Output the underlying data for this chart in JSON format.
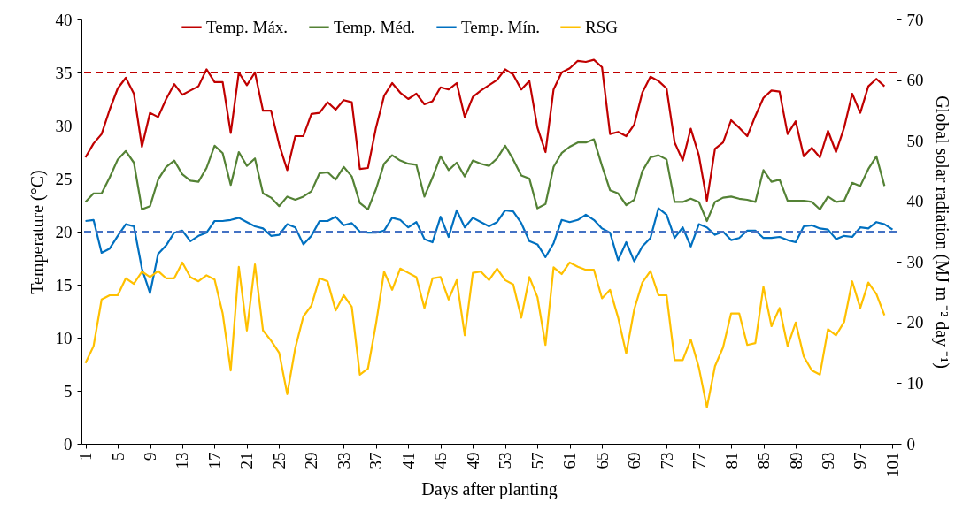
{
  "chart_data": {
    "type": "line",
    "xlabel": "Days after planting",
    "ylabel": "Temperature (°C)",
    "y2label": "Global solar radiation (MJ m ⁻² day ⁻¹)",
    "x": [
      1,
      2,
      3,
      4,
      5,
      6,
      7,
      8,
      9,
      10,
      11,
      12,
      13,
      14,
      15,
      16,
      17,
      18,
      19,
      20,
      21,
      22,
      23,
      24,
      25,
      26,
      27,
      28,
      29,
      30,
      31,
      32,
      33,
      34,
      35,
      36,
      37,
      38,
      39,
      40,
      41,
      42,
      43,
      44,
      45,
      46,
      47,
      48,
      49,
      50,
      51,
      52,
      53,
      54,
      55,
      56,
      57,
      58,
      59,
      60,
      61,
      62,
      63,
      64,
      65,
      66,
      67,
      68,
      69,
      70,
      71,
      72,
      73,
      74,
      75,
      76,
      77,
      78,
      79,
      80,
      81,
      82,
      83,
      84,
      85,
      86,
      87,
      88,
      89,
      90,
      91,
      92,
      93,
      94,
      95,
      96,
      97,
      98,
      99,
      100,
      101
    ],
    "xlim": [
      0.5,
      101.5
    ],
    "xticks": [
      1,
      5,
      9,
      13,
      17,
      21,
      25,
      29,
      33,
      37,
      41,
      45,
      49,
      53,
      57,
      61,
      65,
      69,
      73,
      77,
      81,
      85,
      89,
      93,
      97,
      101
    ],
    "ylim": [
      0,
      40
    ],
    "yticks": [
      0,
      5,
      10,
      15,
      20,
      25,
      30,
      35,
      40
    ],
    "y2lim": [
      0,
      70
    ],
    "y2ticks": [
      0,
      10,
      20,
      30,
      40,
      50,
      60,
      70
    ],
    "legend": "top",
    "grid": false,
    "line_style": "solid",
    "series": [
      {
        "name": "Temp. Máx.",
        "color": "#c00000",
        "values": [
          27,
          28.3,
          29.2,
          31.5,
          33.5,
          34.5,
          33,
          28,
          31.2,
          30.8,
          32.5,
          33.9,
          32.9,
          33.3,
          33.7,
          35.3,
          34.1,
          34.1,
          29.3,
          35,
          33.8,
          35,
          31.4,
          31.4,
          28.2,
          25.8,
          29,
          29,
          31.1,
          31.2,
          32.2,
          31.5,
          32.4,
          32.2,
          25.9,
          26,
          29.8,
          32.8,
          34,
          33.1,
          32.5,
          33,
          32,
          32.3,
          33.6,
          33.4,
          34,
          30.8,
          32.7,
          33.3,
          33.8,
          34.3,
          35.3,
          34.8,
          33.4,
          34.2,
          29.8,
          27.5,
          33.4,
          35,
          35.4,
          36.1,
          36,
          36.2,
          35.5,
          29.2,
          29.4,
          29,
          30.1,
          33.1,
          34.6,
          34.2,
          33.5,
          28.4,
          26.7,
          29.7,
          27.2,
          22.9,
          27.8,
          28.4,
          30.5,
          29.8,
          29,
          30.9,
          32.6,
          33.3,
          33.2,
          29.2,
          30.4,
          27.1,
          27.9,
          27,
          29.5,
          27.5,
          29.8,
          33,
          31.2,
          33.7,
          34.4,
          33.7,
          null
        ]
      },
      {
        "name": "Temp. Méd.",
        "color": "#548235",
        "values": [
          22.8,
          23.6,
          23.6,
          25.1,
          26.8,
          27.6,
          26.5,
          22.1,
          22.4,
          24.9,
          26.1,
          26.7,
          25.4,
          24.8,
          24.7,
          26,
          28.1,
          27.4,
          24.4,
          27.5,
          26.2,
          26.9,
          23.6,
          23.2,
          22.4,
          23.3,
          23,
          23.3,
          23.8,
          25.5,
          25.6,
          24.9,
          26.1,
          25.2,
          22.7,
          22.1,
          24,
          26.4,
          27.2,
          26.7,
          26.4,
          26.3,
          23.3,
          25.1,
          27.1,
          25.8,
          26.5,
          25.2,
          26.7,
          26.4,
          26.2,
          26.9,
          28.1,
          26.8,
          25.3,
          25,
          22.2,
          22.6,
          26.1,
          27.4,
          28,
          28.4,
          28.4,
          28.7,
          26.2,
          23.9,
          23.6,
          22.5,
          23,
          25.7,
          27,
          27.2,
          26.8,
          22.8,
          22.8,
          23.1,
          22.8,
          21,
          22.8,
          23.2,
          23.3,
          23.1,
          23,
          22.8,
          25.8,
          24.7,
          24.9,
          22.9,
          22.9,
          22.9,
          22.8,
          22.1,
          23.3,
          22.8,
          22.9,
          24.6,
          24.3,
          25.9,
          27.1,
          24.3,
          null
        ]
      },
      {
        "name": "Temp. Mín.",
        "color": "#0070c0",
        "values": [
          21,
          21.1,
          18,
          18.4,
          19.6,
          20.7,
          20.5,
          16.5,
          14.2,
          17.9,
          18.7,
          19.9,
          20.1,
          19.1,
          19.6,
          19.9,
          21,
          21,
          21.1,
          21.3,
          20.9,
          20.5,
          20.3,
          19.6,
          19.7,
          20.7,
          20.4,
          18.8,
          19.6,
          21,
          21,
          21.4,
          20.6,
          20.8,
          20,
          19.9,
          19.9,
          20.1,
          21.3,
          21.1,
          20.4,
          20.9,
          19.3,
          19,
          21.4,
          19.5,
          22,
          20.4,
          21.3,
          20.9,
          20.5,
          20.9,
          22,
          21.9,
          20.8,
          19.1,
          18.8,
          17.6,
          18.9,
          21.1,
          20.9,
          21.1,
          21.6,
          21.1,
          20.3,
          19.9,
          17.3,
          19,
          17.2,
          18.6,
          19.4,
          22.2,
          21.6,
          19.4,
          20.4,
          18.6,
          20.7,
          20.4,
          19.7,
          20,
          19.2,
          19.4,
          20.1,
          20.1,
          19.4,
          19.4,
          19.5,
          19.2,
          19,
          20.5,
          20.6,
          20.3,
          20.2,
          19.3,
          19.6,
          19.5,
          20.4,
          20.3,
          20.9,
          20.7,
          20.2
        ]
      },
      {
        "name": "RSG",
        "color": "#ffc000",
        "axis": "y2",
        "values": [
          13.3,
          16.1,
          23.8,
          24.5,
          24.5,
          27.3,
          26.4,
          28.4,
          27.5,
          28.5,
          27.3,
          27.3,
          29.9,
          27.5,
          26.8,
          27.8,
          27.1,
          21.5,
          12.1,
          29.2,
          18.7,
          29.6,
          18.7,
          17,
          15,
          8.2,
          15.8,
          21,
          22.8,
          27.3,
          26.8,
          22,
          24.5,
          22.6,
          11.4,
          12.4,
          19.8,
          28.4,
          25.4,
          28.9,
          28.2,
          27.5,
          22.4,
          27.3,
          27.5,
          23.8,
          27,
          17.9,
          28.2,
          28.4,
          27,
          28.9,
          27,
          26.3,
          20.8,
          27.5,
          24.2,
          16.3,
          29.1,
          28,
          29.9,
          29.2,
          28.7,
          28.7,
          24,
          25.4,
          20.8,
          14.9,
          22.2,
          26.6,
          28.5,
          24.5,
          24.5,
          13.8,
          13.8,
          17.2,
          12.6,
          6,
          12.8,
          15.9,
          21.5,
          21.5,
          16.3,
          16.6,
          25.9,
          19.4,
          22.4,
          16.1,
          20,
          14.4,
          12.1,
          11.4,
          18.9,
          17.9,
          20.1,
          26.8,
          22.4,
          26.6,
          24.7,
          21.2,
          null
        ]
      }
    ],
    "ref_lines": [
      {
        "axis": "y",
        "value": 35,
        "color": "#c00000",
        "line_style": "dashed"
      },
      {
        "axis": "y",
        "value": 20,
        "color": "#4472c4",
        "line_style": "dashed"
      }
    ]
  }
}
